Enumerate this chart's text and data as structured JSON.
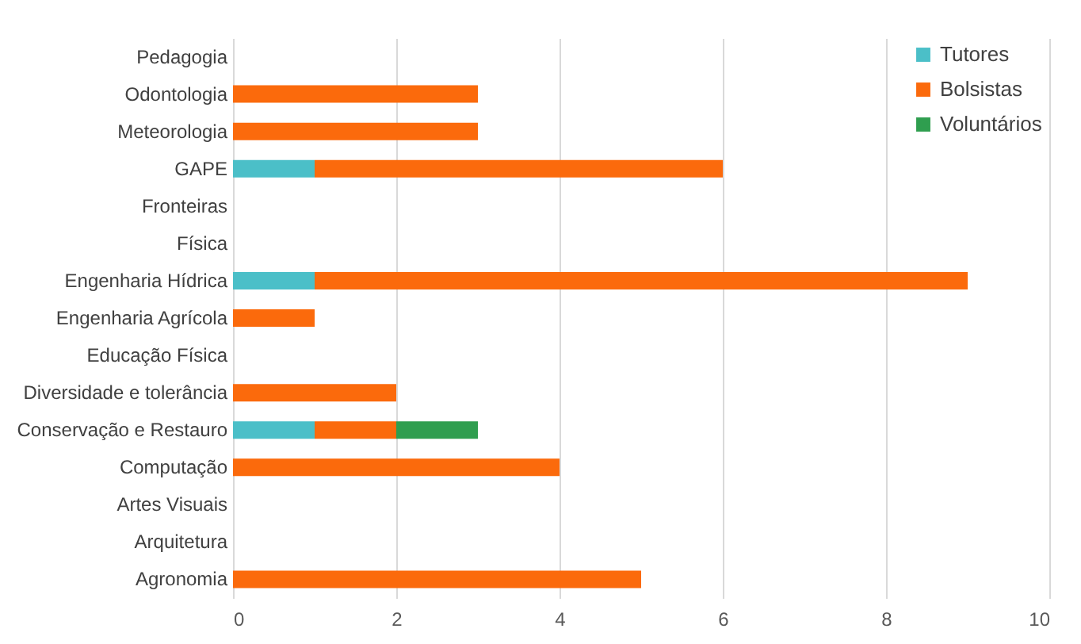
{
  "chart_data": {
    "type": "bar",
    "orientation": "horizontal",
    "stacked": true,
    "categories": [
      "Pedagogia",
      "Odontologia",
      "Meteorologia",
      "GAPE",
      "Fronteiras",
      "Física",
      "Engenharia Hídrica",
      "Engenharia Agrícola",
      "Educação Física",
      "Diversidade e tolerância",
      "Conservação e Restauro",
      "Computação",
      "Artes Visuais",
      "Arquitetura",
      "Agronomia"
    ],
    "series": [
      {
        "name": "Tutores",
        "color": "#4bbfc8",
        "values": [
          null,
          null,
          null,
          1,
          null,
          null,
          1,
          null,
          null,
          null,
          1,
          null,
          null,
          null,
          null
        ]
      },
      {
        "name": "Bolsistas",
        "color": "#fb6a0c",
        "values": [
          null,
          3,
          3,
          5,
          null,
          null,
          8,
          1,
          null,
          2,
          1,
          4,
          null,
          null,
          5
        ]
      },
      {
        "name": "Voluntários",
        "color": "#2f9e4f",
        "values": [
          null,
          null,
          null,
          null,
          null,
          null,
          null,
          null,
          null,
          null,
          1,
          null,
          null,
          null,
          null
        ]
      }
    ],
    "xlim": [
      0,
      10
    ],
    "xticks": [
      0,
      2,
      4,
      6,
      8,
      10
    ],
    "grid": "x",
    "legend": "top right"
  }
}
